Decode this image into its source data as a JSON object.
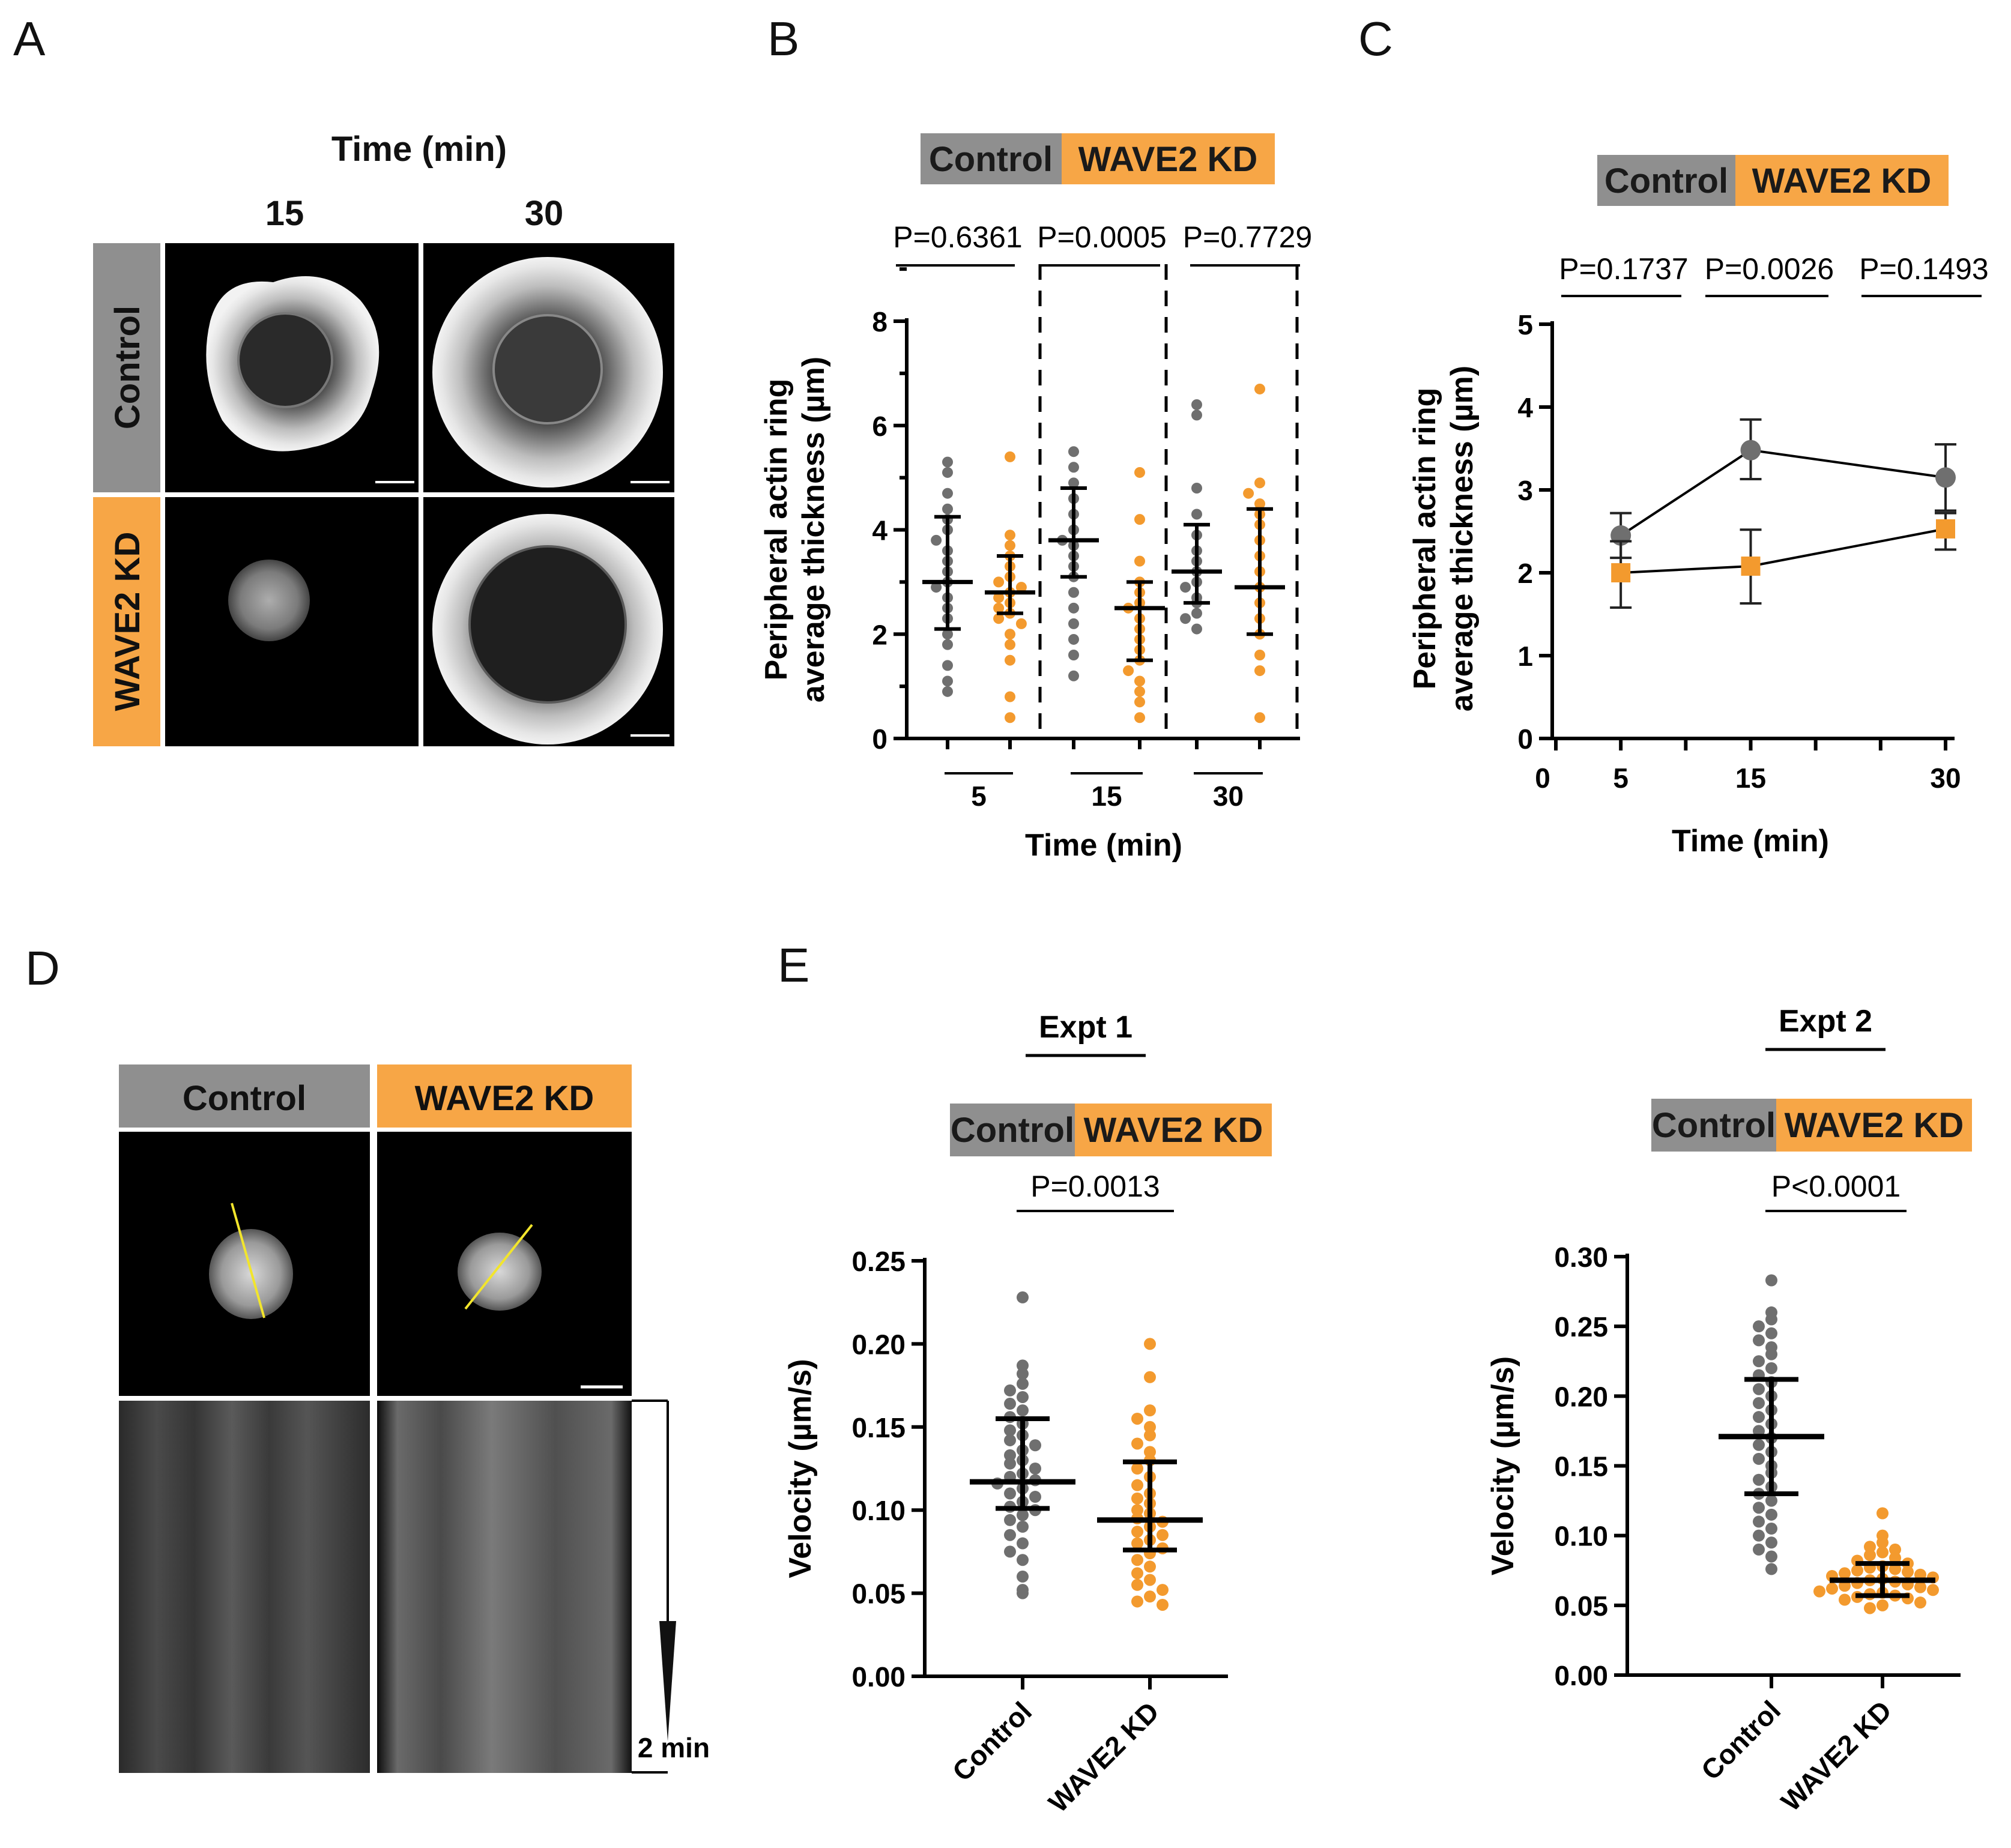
{
  "colors": {
    "control": "#8c8c8c",
    "wave2": "#f7a646",
    "control_dot": "#6f6f6f",
    "wave2_dot": "#f39a2e"
  },
  "panels": {
    "a": "A",
    "b": "B",
    "c": "C",
    "d": "D",
    "e": "E"
  },
  "panel_a": {
    "time_header": "Time (min)",
    "cols": [
      "15",
      "30"
    ],
    "rows": [
      "Control",
      "WAVE2 KD"
    ]
  },
  "panel_d": {
    "cols": [
      "Control",
      "WAVE2 KD"
    ],
    "time_scale": "2 min"
  },
  "legend": {
    "control": "Control",
    "wave2": "WAVE2 KD"
  },
  "chart_data": [
    {
      "id": "B",
      "type": "scatter",
      "xlabel": "Time (min)",
      "ylabel_line1": "Peripheral actin ring",
      "ylabel_line2": "average thickness (µm)",
      "ylim": [
        0,
        8
      ],
      "yticks": [
        "0",
        "2",
        "4",
        "6",
        "8"
      ],
      "groups": [
        "5",
        "15",
        "30"
      ],
      "pvalues": [
        "P=0.6361",
        "P=0.0005",
        "P=0.7729"
      ],
      "series": [
        {
          "name": "Control",
          "points": [
            [
              5.3,
              5.1,
              4.7,
              4.4,
              4.2,
              4.0,
              3.8,
              3.6,
              3.4,
              3.2,
              3.0,
              2.9,
              2.7,
              2.5,
              2.3,
              2.0,
              1.8,
              1.4,
              1.1,
              0.9
            ],
            [
              5.5,
              5.2,
              4.9,
              4.6,
              4.3,
              4.0,
              3.8,
              3.7,
              3.5,
              3.3,
              3.1,
              2.8,
              2.5,
              2.2,
              1.9,
              1.6,
              1.2
            ],
            [
              6.4,
              6.2,
              4.8,
              4.3,
              3.9,
              3.6,
              3.4,
              3.2,
              3.0,
              2.9,
              2.7,
              2.6,
              2.4,
              2.3,
              2.1
            ]
          ],
          "mean": [
            3.0,
            3.8,
            3.2
          ],
          "sd_low": [
            2.1,
            3.1,
            2.6
          ],
          "sd_high": [
            4.25,
            4.8,
            4.1
          ]
        },
        {
          "name": "WAVE2 KD",
          "points": [
            [
              5.4,
              3.9,
              3.7,
              3.5,
              3.3,
              3.1,
              3.0,
              2.9,
              2.8,
              2.7,
              2.6,
              2.5,
              2.4,
              2.3,
              2.2,
              2.0,
              1.8,
              1.5,
              0.8,
              0.4
            ],
            [
              5.1,
              4.2,
              3.4,
              3.0,
              2.8,
              2.6,
              2.5,
              2.3,
              2.1,
              1.9,
              1.7,
              1.5,
              1.3,
              1.1,
              0.9,
              0.7,
              0.4
            ],
            [
              6.7,
              4.9,
              4.7,
              4.5,
              4.3,
              4.1,
              3.8,
              3.5,
              3.2,
              2.9,
              2.6,
              2.3,
              2.0,
              1.6,
              1.3,
              0.4
            ]
          ],
          "mean": [
            2.8,
            2.5,
            2.9
          ],
          "sd_low": [
            2.4,
            1.5,
            2.0
          ],
          "sd_high": [
            3.5,
            3.0,
            4.4
          ]
        }
      ]
    },
    {
      "id": "C",
      "type": "line",
      "xlabel": "Time (min)",
      "ylabel_line1": "Peripheral actin ring",
      "ylabel_line2": "average thickness (µm)",
      "ylim": [
        0,
        5
      ],
      "xlim": [
        0,
        30
      ],
      "yticks": [
        "0",
        "1",
        "2",
        "3",
        "4",
        "5"
      ],
      "xticks": [
        "0",
        "5",
        "15",
        "30"
      ],
      "x": [
        5,
        15,
        30
      ],
      "pvalues": [
        "P=0.1737",
        "P=0.0026",
        "P=0.1493"
      ],
      "series": [
        {
          "name": "Control",
          "values": [
            2.45,
            3.48,
            3.15
          ],
          "err_low": [
            2.18,
            3.13,
            2.75
          ],
          "err_high": [
            2.72,
            3.85,
            3.55
          ]
        },
        {
          "name": "WAVE2 KD",
          "values": [
            2.0,
            2.08,
            2.53
          ],
          "err_low": [
            1.58,
            1.63,
            2.28
          ],
          "err_high": [
            2.38,
            2.52,
            2.72
          ]
        }
      ]
    },
    {
      "id": "E1",
      "type": "scatter",
      "title": "Expt 1",
      "ylabel": "Velocity (µm/s)",
      "ylim": [
        0,
        0.25
      ],
      "yticks": [
        "0.00",
        "0.05",
        "0.10",
        "0.15",
        "0.20",
        "0.25"
      ],
      "categories": [
        "Control",
        "WAVE2 KD"
      ],
      "pvalue": "P=0.0013",
      "series": [
        {
          "name": "Control",
          "points": [
            0.228,
            0.187,
            0.182,
            0.176,
            0.172,
            0.168,
            0.164,
            0.16,
            0.156,
            0.152,
            0.148,
            0.145,
            0.142,
            0.139,
            0.136,
            0.133,
            0.13,
            0.128,
            0.125,
            0.122,
            0.12,
            0.118,
            0.116,
            0.113,
            0.11,
            0.108,
            0.105,
            0.102,
            0.1,
            0.097,
            0.094,
            0.09,
            0.085,
            0.08,
            0.075,
            0.07,
            0.06,
            0.052,
            0.05
          ],
          "mean": 0.117,
          "sd_low": 0.101,
          "sd_high": 0.155
        },
        {
          "name": "WAVE2 KD",
          "points": [
            0.2,
            0.18,
            0.16,
            0.155,
            0.15,
            0.145,
            0.14,
            0.135,
            0.13,
            0.125,
            0.12,
            0.115,
            0.11,
            0.107,
            0.104,
            0.1,
            0.098,
            0.095,
            0.093,
            0.09,
            0.087,
            0.085,
            0.082,
            0.08,
            0.077,
            0.074,
            0.07,
            0.066,
            0.062,
            0.058,
            0.055,
            0.052,
            0.048,
            0.045,
            0.043
          ],
          "mean": 0.094,
          "sd_low": 0.076,
          "sd_high": 0.129
        }
      ]
    },
    {
      "id": "E2",
      "type": "scatter",
      "title": "Expt 2",
      "ylabel": "Velocity (µm/s)",
      "ylim": [
        0,
        0.3
      ],
      "yticks": [
        "0.00",
        "0.05",
        "0.10",
        "0.15",
        "0.20",
        "0.25",
        "0.30"
      ],
      "categories": [
        "Control",
        "WAVE2 KD"
      ],
      "pvalue": "P<0.0001",
      "series": [
        {
          "name": "Control",
          "points": [
            0.283,
            0.26,
            0.255,
            0.25,
            0.245,
            0.24,
            0.235,
            0.23,
            0.225,
            0.22,
            0.215,
            0.21,
            0.205,
            0.2,
            0.195,
            0.19,
            0.185,
            0.18,
            0.175,
            0.17,
            0.165,
            0.16,
            0.155,
            0.15,
            0.145,
            0.14,
            0.135,
            0.13,
            0.125,
            0.12,
            0.115,
            0.11,
            0.105,
            0.1,
            0.095,
            0.09,
            0.085,
            0.076
          ],
          "mean": 0.171,
          "sd_low": 0.13,
          "sd_high": 0.212
        },
        {
          "name": "WAVE2 KD",
          "points": [
            0.116,
            0.1,
            0.095,
            0.092,
            0.09,
            0.088,
            0.086,
            0.084,
            0.082,
            0.08,
            0.078,
            0.077,
            0.076,
            0.075,
            0.074,
            0.073,
            0.072,
            0.071,
            0.07,
            0.069,
            0.068,
            0.067,
            0.066,
            0.065,
            0.064,
            0.063,
            0.062,
            0.061,
            0.06,
            0.059,
            0.058,
            0.057,
            0.056,
            0.055,
            0.054,
            0.052,
            0.05,
            0.048
          ],
          "mean": 0.068,
          "sd_low": 0.057,
          "sd_high": 0.08
        }
      ]
    }
  ]
}
